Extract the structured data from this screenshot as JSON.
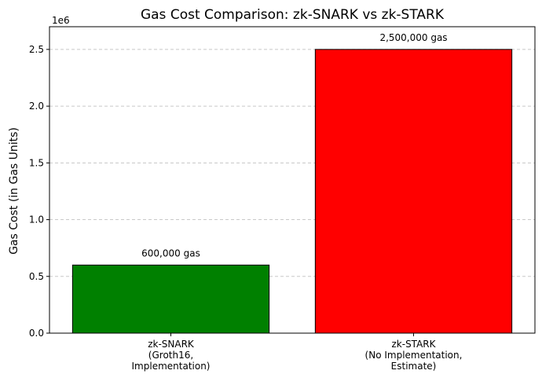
{
  "chart_data": {
    "type": "bar",
    "title": "Gas Cost Comparison: zk-SNARK vs zk-STARK",
    "xlabel": "",
    "ylabel": "Gas Cost (in Gas Units)",
    "offset_label": "1e6",
    "categories": [
      [
        "zk-SNARK",
        "(Groth16,",
        "Implementation)"
      ],
      [
        "zk-STARK",
        "(No Implementation,",
        "Estimate)"
      ]
    ],
    "values": [
      600000,
      2500000
    ],
    "data_labels": [
      "600,000 gas",
      "2,500,000 gas"
    ],
    "colors": [
      "#008000",
      "#ff0000"
    ],
    "ylim": [
      0,
      2700000
    ],
    "yticks": [
      0,
      500000,
      1000000,
      1500000,
      2000000,
      2500000
    ],
    "ytick_labels": [
      "0.0",
      "0.5",
      "1.0",
      "1.5",
      "2.0",
      "2.5"
    ],
    "grid": "y-dashed"
  }
}
